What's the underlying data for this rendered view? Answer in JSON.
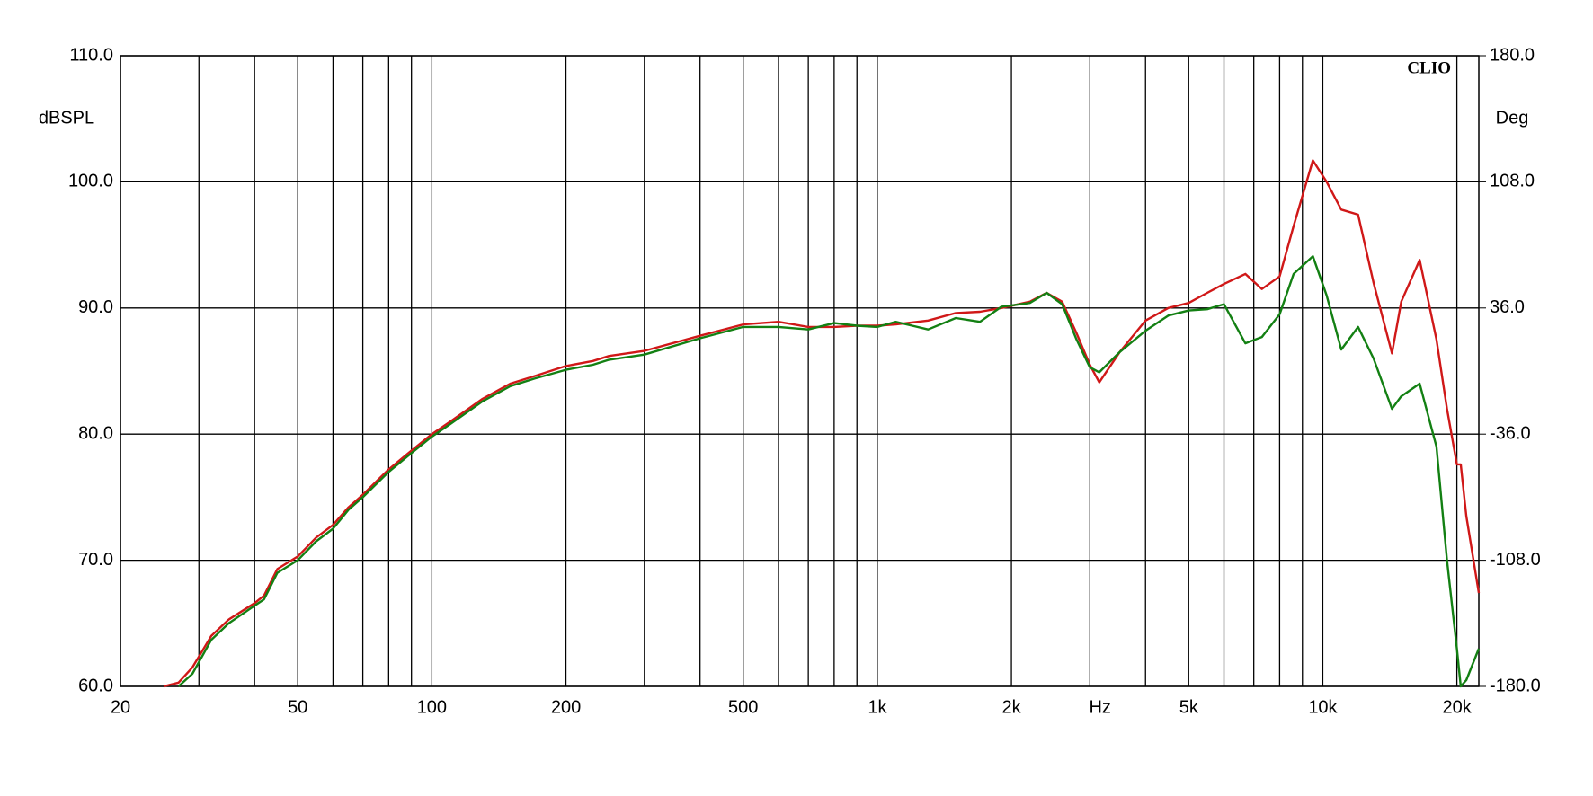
{
  "chart_data": {
    "type": "line",
    "watermark": "CLIO",
    "y_label": "dBSPL",
    "y2_label": "Deg",
    "x_label": "Hz",
    "log_x": true,
    "grid": true,
    "xlim": [
      20,
      22400
    ],
    "ylim": [
      60,
      110
    ],
    "y2lim": [
      -180,
      180
    ],
    "xticks": [
      20,
      50,
      100,
      200,
      500,
      {
        "value": 1000,
        "label": "1k"
      },
      {
        "value": 2000,
        "label": "2k"
      },
      {
        "value": 5000,
        "label": "5k"
      },
      {
        "value": 10000,
        "label": "10k"
      },
      {
        "value": 20000,
        "label": "20k"
      }
    ],
    "xgrid": [
      30,
      40,
      60,
      70,
      80,
      90,
      300,
      400,
      600,
      700,
      800,
      900,
      3000,
      4000,
      6000,
      7000,
      8000,
      9000
    ],
    "yticks": [
      {
        "value": 60,
        "label": "60.0"
      },
      {
        "value": 70,
        "label": "70.0"
      },
      {
        "value": 80,
        "label": "80.0"
      },
      {
        "value": 90,
        "label": "90.0"
      },
      {
        "value": 100,
        "label": "100.0"
      },
      {
        "value": 110,
        "label": "110.0"
      }
    ],
    "y2ticks": [
      {
        "value": -180,
        "label": "-180.0"
      },
      {
        "value": -108,
        "label": "-108.0"
      },
      {
        "value": -36,
        "label": "-36.0"
      },
      {
        "value": 36,
        "label": "36.0"
      },
      {
        "value": 108,
        "label": "108.0"
      },
      {
        "value": 180,
        "label": "180.0"
      }
    ],
    "x": [
      25,
      27,
      29,
      32,
      35,
      40,
      42,
      45,
      50,
      55,
      60,
      65,
      70,
      80,
      90,
      100,
      110,
      130,
      150,
      170,
      200,
      230,
      250,
      300,
      400,
      500,
      600,
      700,
      800,
      900,
      1000,
      1100,
      1300,
      1500,
      1700,
      1900,
      2200,
      2400,
      2600,
      2800,
      3000,
      3150,
      3500,
      4000,
      4500,
      5000,
      5500,
      6000,
      6700,
      7300,
      8000,
      8600,
      9500,
      10200,
      11000,
      12000,
      13000,
      14300,
      15000,
      16500,
      18000,
      19000,
      20000,
      20400,
      21000,
      22400
    ],
    "series": [
      {
        "color": "#d01818",
        "values": [
          60.0,
          60.3,
          61.5,
          64.0,
          65.3,
          66.6,
          67.2,
          69.3,
          70.3,
          71.8,
          72.8,
          74.2,
          75.2,
          77.2,
          78.7,
          80.0,
          81.0,
          82.8,
          84.0,
          84.6,
          85.4,
          85.8,
          86.2,
          86.6,
          87.8,
          88.7,
          88.9,
          88.5,
          88.5,
          88.6,
          88.6,
          88.7,
          89.0,
          89.6,
          89.7,
          90.0,
          90.5,
          91.2,
          90.5,
          88.0,
          85.5,
          84.1,
          86.5,
          89.0,
          90.0,
          90.4,
          91.2,
          91.9,
          92.7,
          91.5,
          92.5,
          96.5,
          101.7,
          100.0,
          97.8,
          97.4,
          92.0,
          86.4,
          90.5,
          93.8,
          87.5,
          82.0,
          77.6,
          77.6,
          73.5,
          67.4
        ]
      },
      {
        "color": "#138013",
        "values": [
          null,
          60.0,
          61.0,
          63.7,
          65.0,
          66.4,
          66.9,
          69.0,
          70.0,
          71.5,
          72.5,
          74.0,
          75.0,
          77.0,
          78.5,
          79.8,
          80.8,
          82.6,
          83.8,
          84.4,
          85.1,
          85.5,
          85.9,
          86.3,
          87.6,
          88.5,
          88.5,
          88.3,
          88.8,
          88.6,
          88.5,
          88.9,
          88.3,
          89.2,
          88.9,
          90.1,
          90.4,
          91.2,
          90.3,
          87.5,
          85.3,
          84.9,
          86.5,
          88.2,
          89.4,
          89.8,
          89.9,
          90.3,
          87.2,
          87.7,
          89.5,
          92.7,
          94.1,
          91.0,
          86.7,
          88.5,
          86.0,
          82.0,
          83.0,
          84.0,
          79.0,
          70.0,
          63.0,
          60.0,
          60.5,
          63.0
        ]
      }
    ]
  }
}
